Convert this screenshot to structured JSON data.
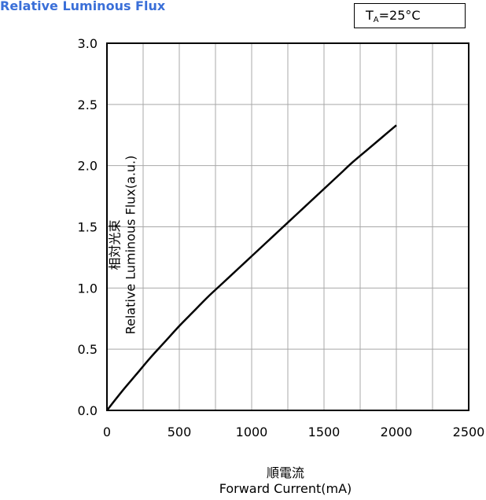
{
  "chart_data": {
    "type": "line",
    "title": "Relative Luminous Flux",
    "condition_label": {
      "prefix": "T",
      "subscript": "A",
      "value": "=25°C"
    },
    "xlabel_cn": "順電流",
    "xlabel": "Forward Current(mA)",
    "ylabel_cn": "相対光束",
    "ylabel": "Relative Luminous Flux(a.u.)",
    "xlim": [
      0,
      2500
    ],
    "ylim": [
      0,
      3.0
    ],
    "x_ticks": [
      "0",
      "500",
      "1000",
      "1500",
      "2000",
      "2500"
    ],
    "y_ticks": [
      "0.0",
      "0.5",
      "1.0",
      "1.5",
      "2.0",
      "2.5",
      "3.0"
    ],
    "grid": true,
    "series": [
      {
        "x": [
          0,
          100,
          200,
          300,
          400,
          500,
          600,
          700,
          800,
          900,
          1000,
          1100,
          1200,
          1300,
          1400,
          1500,
          1600,
          1700,
          1800,
          1900,
          2000
        ],
        "y": [
          0.0,
          0.15,
          0.29,
          0.43,
          0.56,
          0.69,
          0.81,
          0.93,
          1.04,
          1.15,
          1.26,
          1.37,
          1.48,
          1.59,
          1.7,
          1.81,
          1.92,
          2.03,
          2.13,
          2.23,
          2.33
        ]
      }
    ]
  }
}
